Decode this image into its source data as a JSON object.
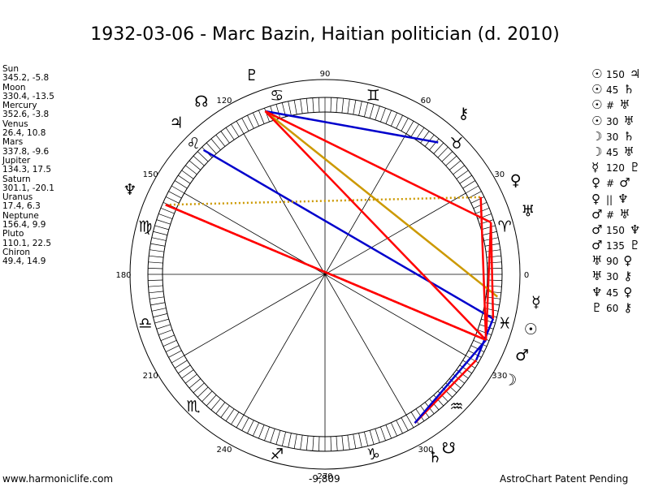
{
  "title": "1932-03-06 - Marc Bazin, Haitian politician (d. 2010)",
  "positions": [
    {
      "name": "Sun",
      "coords": "345.2, -5.8"
    },
    {
      "name": "Moon",
      "coords": "330.4, -13.5"
    },
    {
      "name": "Mercury",
      "coords": "352.6, -3.8"
    },
    {
      "name": "Venus",
      "coords": "26.4, 10.8"
    },
    {
      "name": "Mars",
      "coords": "337.8, -9.6"
    },
    {
      "name": "Jupiter",
      "coords": "134.3, 17.5"
    },
    {
      "name": "Saturn",
      "coords": "301.1, -20.1"
    },
    {
      "name": "Uranus",
      "coords": "17.4, 6.3"
    },
    {
      "name": "Neptune",
      "coords": "156.4, 9.9"
    },
    {
      "name": "Pluto",
      "coords": "110.1, 22.5"
    },
    {
      "name": "Chiron",
      "coords": "49.4, 14.9"
    }
  ],
  "aspects": [
    {
      "p1": "☉",
      "aspect": "150",
      "p2": "♃"
    },
    {
      "p1": "☉",
      "aspect": "45",
      "p2": "♄"
    },
    {
      "p1": "☉",
      "aspect": "#",
      "p2": "♅"
    },
    {
      "p1": "☉",
      "aspect": "30",
      "p2": "♅"
    },
    {
      "p1": "☽",
      "aspect": "30",
      "p2": "♄"
    },
    {
      "p1": "☽",
      "aspect": "45",
      "p2": "♅"
    },
    {
      "p1": "☿",
      "aspect": "120",
      "p2": "♇"
    },
    {
      "p1": "♀",
      "aspect": "#",
      "p2": "♂"
    },
    {
      "p1": "♀",
      "aspect": "||",
      "p2": "♆"
    },
    {
      "p1": "♂",
      "aspect": "#",
      "p2": "♅"
    },
    {
      "p1": "♂",
      "aspect": "150",
      "p2": "♆"
    },
    {
      "p1": "♂",
      "aspect": "135",
      "p2": "♇"
    },
    {
      "p1": "♅",
      "aspect": "90",
      "p2": "♀"
    },
    {
      "p1": "♅",
      "aspect": "30",
      "p2": "⚷"
    },
    {
      "p1": "♆",
      "aspect": "45",
      "p2": "♀"
    },
    {
      "p1": "♇",
      "aspect": "60",
      "p2": "⚷"
    }
  ],
  "wheel": {
    "degree_labels": [
      "0",
      "30",
      "60",
      "90",
      "120",
      "150",
      "180",
      "210",
      "240",
      "270",
      "300",
      "330"
    ],
    "sign_glyphs": [
      "♈",
      "♉",
      "♊",
      "♋",
      "♌",
      "♍",
      "♎",
      "♏",
      "♐",
      "♑",
      "♒",
      "♓"
    ],
    "planets": [
      {
        "key": "sun",
        "glyph": "☉",
        "lon": 345.2
      },
      {
        "key": "moon",
        "glyph": "☽",
        "lon": 330.4
      },
      {
        "key": "mercury",
        "glyph": "☿",
        "lon": 352.6
      },
      {
        "key": "venus",
        "glyph": "♀",
        "lon": 26.4
      },
      {
        "key": "mars",
        "glyph": "♂",
        "lon": 337.8
      },
      {
        "key": "jupiter",
        "glyph": "♃",
        "lon": 134.3
      },
      {
        "key": "saturn",
        "glyph": "♄",
        "lon": 301.1
      },
      {
        "key": "uranus",
        "glyph": "♅",
        "lon": 17.4
      },
      {
        "key": "neptune",
        "glyph": "♆",
        "lon": 156.4
      },
      {
        "key": "pluto",
        "glyph": "♇",
        "lon": 110.1
      },
      {
        "key": "chiron",
        "glyph": "⚷",
        "lon": 49.4
      },
      {
        "key": "node",
        "glyph": "☊",
        "lon": 125.5
      },
      {
        "key": "south-node",
        "glyph": "☋",
        "lon": 305.5
      }
    ],
    "aspect_lines": [
      {
        "a": "pluto",
        "b": "chiron",
        "color": "#0000cc",
        "style": "solid"
      },
      {
        "a": "jupiter",
        "b": "sun",
        "color": "#0000cc",
        "style": "solid"
      },
      {
        "a": "neptune",
        "b": "venus",
        "color": "#cc9900",
        "style": "dotted"
      },
      {
        "a": "pluto",
        "b": "mercury",
        "color": "#cc9900",
        "style": "solid"
      },
      {
        "a": "pluto",
        "b": "uranus",
        "color": "#ff0000",
        "style": "solid"
      },
      {
        "a": "pluto",
        "b": "mars",
        "color": "#ff0000",
        "style": "solid"
      },
      {
        "a": "neptune",
        "b": "mars",
        "color": "#ff0000",
        "style": "solid"
      },
      {
        "a": "neptune",
        "b": "mars",
        "color": "#ff0000",
        "style": "dotted"
      },
      {
        "a": "uranus",
        "b": "mars",
        "color": "#ff0000",
        "style": "solid"
      },
      {
        "a": "uranus",
        "b": "sun",
        "color": "#ff0000",
        "style": "solid"
      },
      {
        "a": "sun",
        "b": "moon",
        "color": "#0000cc",
        "style": "solid"
      },
      {
        "a": "moon",
        "b": "saturn",
        "color": "#ff0000",
        "style": "solid"
      },
      {
        "a": "mars",
        "b": "saturn",
        "color": "#0000cc",
        "style": "solid"
      },
      {
        "a": "venus",
        "b": "mars",
        "color": "#ff0000",
        "style": "solid"
      }
    ]
  },
  "footer": {
    "left": "www.harmoniclife.com",
    "mid": "-9,809",
    "right": "AstroChart Patent Pending"
  }
}
